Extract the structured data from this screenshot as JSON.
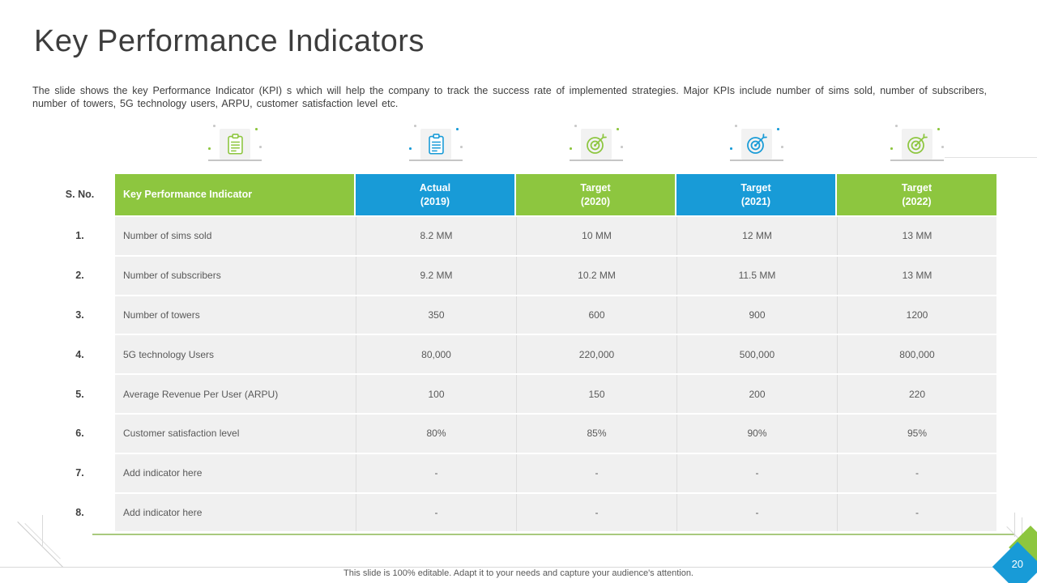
{
  "slide": {
    "title": "Key Performance Indicators",
    "description": "The slide shows the key Performance Indicator (KPI) s which will help the company to track the success rate of implemented strategies. Major KPIs include number of sims sold, number of subscribers, number of towers, 5G technology users, ARPU, customer satisfaction level etc.",
    "footer": "This slide is 100% editable. Adapt it to your needs and capture your audience's attention.",
    "page_number": "20"
  },
  "theme": {
    "green": "#8DC63F",
    "blue": "#189BD7",
    "row_bg": "#F0F0F0",
    "body_text": "#595959"
  },
  "icons": [
    {
      "name": "clipboard-icon",
      "type": "clipboard",
      "color": "green"
    },
    {
      "name": "clipboard-icon",
      "type": "clipboard",
      "color": "blue"
    },
    {
      "name": "target-icon",
      "type": "target",
      "color": "green"
    },
    {
      "name": "target-icon",
      "type": "target",
      "color": "blue"
    },
    {
      "name": "target-icon",
      "type": "target",
      "color": "green"
    }
  ],
  "table": {
    "sno_header": "S. No.",
    "columns": [
      {
        "label": "Key Performance Indicator",
        "sublabel": "",
        "color": "green"
      },
      {
        "label": "Actual",
        "sublabel": "(2019)",
        "color": "blue"
      },
      {
        "label": "Target",
        "sublabel": "(2020)",
        "color": "green"
      },
      {
        "label": "Target",
        "sublabel": "(2021)",
        "color": "blue"
      },
      {
        "label": "Target",
        "sublabel": "(2022)",
        "color": "green"
      }
    ],
    "rows": [
      {
        "sno": "1.",
        "kpi": "Number of sims sold",
        "values": [
          "8.2 MM",
          "10 MM",
          "12 MM",
          "13 MM"
        ]
      },
      {
        "sno": "2.",
        "kpi": "Number of subscribers",
        "values": [
          "9.2 MM",
          "10.2 MM",
          "11.5 MM",
          "13 MM"
        ]
      },
      {
        "sno": "3.",
        "kpi": "Number of towers",
        "values": [
          "350",
          "600",
          "900",
          "1200"
        ]
      },
      {
        "sno": "4.",
        "kpi": "5G technology Users",
        "values": [
          "80,000",
          "220,000",
          "500,000",
          "800,000"
        ]
      },
      {
        "sno": "5.",
        "kpi": "Average Revenue Per User (ARPU)",
        "values": [
          "100",
          "150",
          "200",
          "220"
        ]
      },
      {
        "sno": "6.",
        "kpi": "Customer satisfaction level",
        "values": [
          "80%",
          "85%",
          "90%",
          "95%"
        ]
      },
      {
        "sno": "7.",
        "kpi": "Add indicator here",
        "values": [
          "-",
          "-",
          "-",
          "-"
        ]
      },
      {
        "sno": "8.",
        "kpi": "Add indicator here",
        "values": [
          "-",
          "-",
          "-",
          "-"
        ]
      }
    ]
  }
}
